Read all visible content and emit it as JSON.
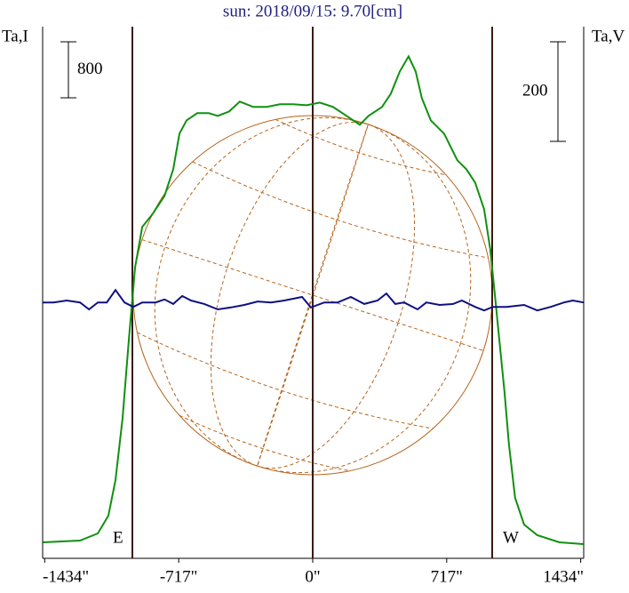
{
  "chart_data": {
    "type": "line",
    "title": "sun: 2018/09/15: 9.70[cm]",
    "y_label": "Ta,I",
    "y2_label": "Ta,V",
    "annotations": [
      "E",
      "W"
    ],
    "xlim": [
      -1445,
      1450
    ],
    "xticks": [
      {
        "value": -1434,
        "label": "-1434\""
      },
      {
        "value": -717,
        "label": "-717\""
      },
      {
        "value": 0,
        "label": "0\""
      },
      {
        "value": 717,
        "label": "717\""
      },
      {
        "value": 1434,
        "label": "1434\""
      }
    ],
    "ylim": [
      0,
      7600
    ],
    "y2lim": [
      -534,
      534
    ],
    "scale_bars": [
      {
        "value": 800,
        "axis": "y"
      },
      {
        "value": 200,
        "axis": "y2"
      }
    ],
    "series": [
      {
        "name": "Ta,I",
        "color": "#109010",
        "x": [
          -1444,
          -1245,
          -1150,
          -1093,
          -1055,
          -1017,
          -983,
          -950,
          -912,
          -855,
          -793,
          -746,
          -713,
          -675,
          -618,
          -556,
          -508,
          -447,
          -390,
          -318,
          -247,
          -176,
          -105,
          -33,
          38,
          109,
          181,
          252,
          299,
          371,
          418,
          466,
          513,
          551,
          584,
          632,
          703,
          774,
          822,
          869,
          917,
          950,
          979,
          1002,
          1026,
          1050,
          1083,
          1131,
          1202,
          1320,
          1449
        ],
        "values": [
          229,
          254,
          356,
          610,
          1118,
          2007,
          3150,
          4166,
          4737,
          4928,
          5182,
          5563,
          6071,
          6261,
          6363,
          6363,
          6325,
          6388,
          6528,
          6452,
          6452,
          6490,
          6490,
          6477,
          6515,
          6452,
          6325,
          6198,
          6325,
          6452,
          6642,
          6960,
          7175,
          6960,
          6579,
          6261,
          6071,
          5690,
          5563,
          5372,
          4991,
          4420,
          3658,
          3023,
          2388,
          1626,
          864,
          483,
          330,
          229,
          203
        ]
      },
      {
        "name": "Ta,V",
        "color": "#101080",
        "axis": "y2",
        "x": [
          -1444,
          -1387,
          -1316,
          -1245,
          -1197,
          -1150,
          -1102,
          -1055,
          -1007,
          -960,
          -912,
          -841,
          -793,
          -746,
          -698,
          -651,
          -580,
          -508,
          -437,
          -366,
          -295,
          -223,
          -152,
          -57,
          -10,
          62,
          133,
          204,
          276,
          347,
          394,
          442,
          489,
          561,
          608,
          679,
          751,
          798,
          869,
          917,
          964,
          1036,
          1131,
          1202,
          1273,
          1345,
          1392,
          1449
        ],
        "values": [
          -20,
          -20,
          -16,
          -20,
          -34,
          -20,
          -20,
          5,
          -20,
          -29,
          -20,
          -20,
          -14,
          -23,
          -7,
          -16,
          -23,
          -34,
          -30,
          -25,
          -18,
          -20,
          -16,
          -9,
          -30,
          -20,
          -20,
          -9,
          -23,
          -16,
          -2,
          -23,
          -20,
          -34,
          -20,
          -25,
          -23,
          -16,
          -29,
          -36,
          -29,
          -29,
          -25,
          -36,
          -29,
          -20,
          -16,
          -20
        ]
      }
    ]
  }
}
